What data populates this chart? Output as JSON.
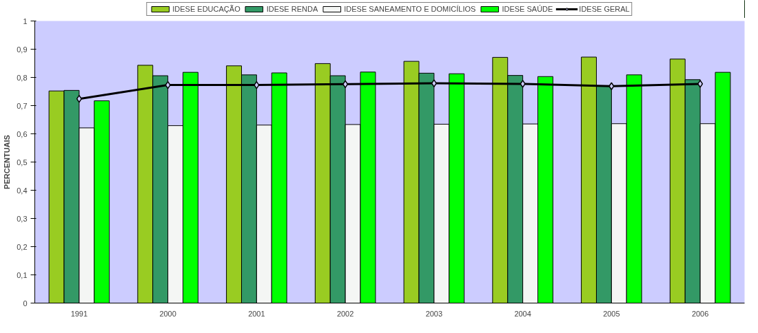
{
  "chart_data": {
    "type": "bar",
    "ylabel": "PERCENTUAIS",
    "categories": [
      "1991",
      "2000",
      "2001",
      "2002",
      "2003",
      "2004",
      "2005",
      "2006"
    ],
    "series": [
      {
        "name": "IDESE EDUCAÇÃO",
        "color": "#99cc22",
        "values": [
          0.752,
          0.843,
          0.841,
          0.849,
          0.857,
          0.871,
          0.872,
          0.865
        ]
      },
      {
        "name": "IDESE RENDA",
        "color": "#339966",
        "values": [
          0.754,
          0.806,
          0.809,
          0.806,
          0.815,
          0.807,
          0.769,
          0.792
        ]
      },
      {
        "name": "IDESE SANEAMENTO E DOMICÍLIOS",
        "color": "#f4f6f4",
        "values": [
          0.621,
          0.629,
          0.631,
          0.633,
          0.634,
          0.635,
          0.636,
          0.636
        ]
      },
      {
        "name": "IDESE SAÚDE",
        "color": "#00ff00",
        "values": [
          0.717,
          0.818,
          0.816,
          0.819,
          0.813,
          0.803,
          0.809,
          0.818
        ]
      },
      {
        "name": "IDESE GERAL",
        "color": "#000000",
        "type": "line",
        "marker": "diamond",
        "values": [
          0.724,
          0.773,
          0.773,
          0.776,
          0.779,
          0.777,
          0.769,
          0.777
        ]
      }
    ],
    "ylim": [
      0,
      1
    ],
    "yticks": [
      0,
      {
        "value": 0.1,
        "label": "0,1"
      },
      {
        "value": 0.2,
        "label": "0,2"
      },
      {
        "value": 0.3,
        "label": "0,3"
      },
      {
        "value": 0.4,
        "label": "0,4"
      },
      {
        "value": 0.5,
        "label": "0,5"
      },
      {
        "value": 0.6,
        "label": "0,6"
      },
      {
        "value": 0.7,
        "label": "0,7"
      },
      {
        "value": 0.8,
        "label": "0,8"
      },
      {
        "value": 0.9,
        "label": "0,9"
      },
      1
    ],
    "grid": false,
    "legend": "top"
  }
}
